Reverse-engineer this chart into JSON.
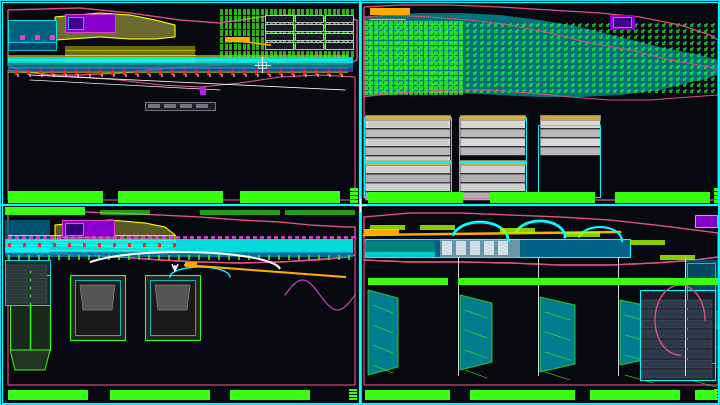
{
  "bg": "#0d0d1a",
  "dark_panel": "#080810",
  "cyan": "#00e5ff",
  "cyan2": "#00ffff",
  "green": "#39ff14",
  "green2": "#00ff88",
  "pink": "#e05080",
  "magenta": "#dd44cc",
  "purple": "#8800cc",
  "purple2": "#aa22ee",
  "yellow": "#ffff00",
  "yellow2": "#dddd00",
  "orange": "#ffaa00",
  "orange2": "#ff6600",
  "white": "#ffffff",
  "gray": "#aaaaaa",
  "gray2": "#666666",
  "blue": "#1144aa",
  "blue2": "#2266cc",
  "teal": "#00897b",
  "cyan_fill": "#00bcd4",
  "lime": "#aaff00",
  "olive": "#556b2f",
  "tan": "#8b7355",
  "red": "#ff2222"
}
